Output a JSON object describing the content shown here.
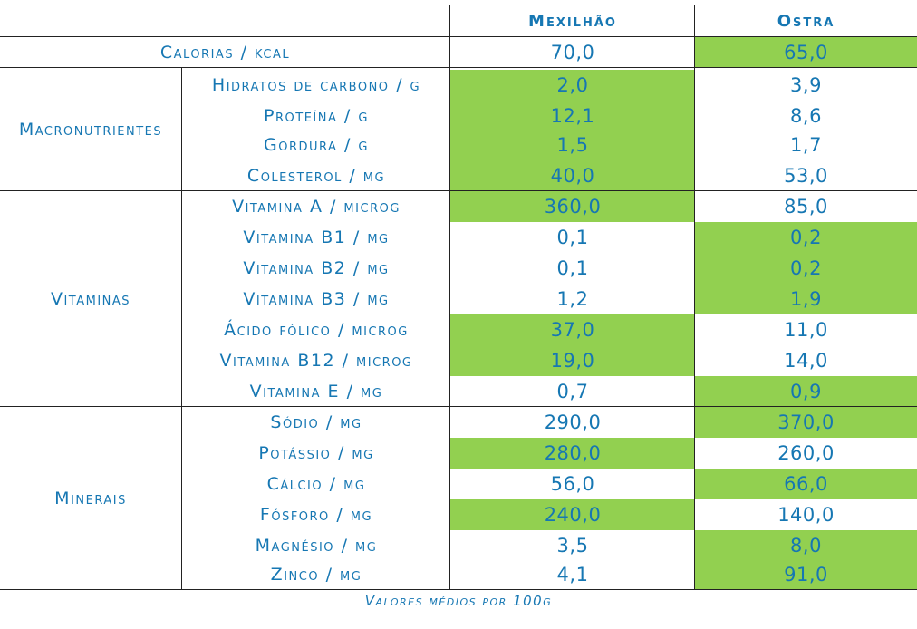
{
  "header": {
    "col1": "Mexilhão",
    "col2": "Ostra"
  },
  "calories": {
    "label": "Calorias / kcal",
    "mexilhao": "70,0",
    "ostra": "65,0"
  },
  "groups": {
    "macro": {
      "label": "Macronutrientes",
      "rows": [
        {
          "label": "Hidratos de carbono / g",
          "mexilhao": "2,0",
          "ostra": "3,9"
        },
        {
          "label": "Proteína / g",
          "mexilhao": "12,1",
          "ostra": "8,6"
        },
        {
          "label": "Gordura / g",
          "mexilhao": "1,5",
          "ostra": "1,7"
        },
        {
          "label": "Colesterol / mg",
          "mexilhao": "40,0",
          "ostra": "53,0"
        }
      ]
    },
    "vit": {
      "label": "Vitaminas",
      "rows": [
        {
          "label": "Vitamina A / microg",
          "mexilhao": "360,0",
          "ostra": "85,0"
        },
        {
          "label": "Vitamina B1 / mg",
          "mexilhao": "0,1",
          "ostra": "0,2"
        },
        {
          "label": "Vitamina B2 / mg",
          "mexilhao": "0,1",
          "ostra": "0,2"
        },
        {
          "label": "Vitamina B3 / mg",
          "mexilhao": "1,2",
          "ostra": "1,9"
        },
        {
          "label": "Ácido fólico / microg",
          "mexilhao": "37,0",
          "ostra": "11,0"
        },
        {
          "label": "Vitamina B12 / microg",
          "mexilhao": "19,0",
          "ostra": "14,0"
        },
        {
          "label": "Vitamina E / mg",
          "mexilhao": "0,7",
          "ostra": "0,9"
        }
      ]
    },
    "min": {
      "label": "Minerais",
      "rows": [
        {
          "label": "Sódio / mg",
          "mexilhao": "290,0",
          "ostra": "370,0"
        },
        {
          "label": "Potássio / mg",
          "mexilhao": "280,0",
          "ostra": "260,0"
        },
        {
          "label": "Cálcio / mg",
          "mexilhao": "56,0",
          "ostra": "66,0"
        },
        {
          "label": "Fósforo / mg",
          "mexilhao": "240,0",
          "ostra": "140,0"
        },
        {
          "label": "Magnésio / mg",
          "mexilhao": "3,5",
          "ostra": "8,0"
        },
        {
          "label": "Zinco / mg",
          "mexilhao": "4,1",
          "ostra": "91,0"
        }
      ]
    }
  },
  "colors": {
    "highlight": "#92d050",
    "text": "#1677b3"
  },
  "footer": "Valores médios por 100g"
}
